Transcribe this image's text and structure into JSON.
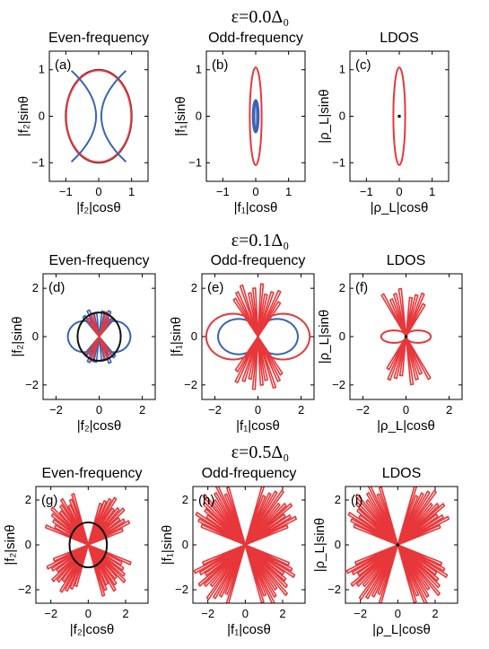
{
  "row_titles": [
    "ε=0.0Δ₀",
    "ε=0.1Δ₀",
    "ε=0.5Δ₀"
  ],
  "column_titles": [
    "Even-frequency",
    "Odd-frequency",
    "LDOS"
  ],
  "colors": {
    "red": "#e8373a",
    "blue": "#3a63b5",
    "black": "#111111"
  },
  "chart_data": [
    {
      "panel": "(a)",
      "type": "line",
      "title": "Even-frequency",
      "xlabel": "|f₂|cosθ",
      "ylabel": "|f₂|sinθ",
      "xlim": [
        -1.5,
        1.5
      ],
      "ylim": [
        -1.4,
        1.4
      ],
      "xticks": [
        -1,
        0,
        1
      ],
      "yticks": [
        -1,
        0,
        1
      ],
      "curves": [
        {
          "kind": "circle",
          "r": 1,
          "color": "black"
        },
        {
          "kind": "circle",
          "r": 0.99,
          "color": "red"
        },
        {
          "kind": "lens",
          "offset": 0.75,
          "color": "blue"
        },
        {
          "kind": "lens",
          "offset": -0.75,
          "color": "blue"
        }
      ]
    },
    {
      "panel": "(b)",
      "type": "line",
      "title": "Odd-frequency",
      "xlabel": "|f₁|cosθ",
      "ylabel": "|f₁|sinθ",
      "xlim": [
        -1.5,
        1.5
      ],
      "ylim": [
        -1.4,
        1.4
      ],
      "xticks": [
        -1,
        0,
        1
      ],
      "yticks": [
        -1,
        0,
        1
      ],
      "curves": [
        {
          "kind": "ellipse",
          "a": 0.18,
          "b": 1.05,
          "color": "red"
        },
        {
          "kind": "ellipse",
          "a": 0.09,
          "b": 0.35,
          "color": "blue"
        },
        {
          "kind": "ellipse",
          "a": 0.04,
          "b": 0.32,
          "color": "blue"
        }
      ]
    },
    {
      "panel": "(c)",
      "type": "line",
      "title": "LDOS",
      "xlabel": "|ρ_L|cosθ",
      "ylabel": "|ρ_L|sinθ",
      "xlim": [
        -1.5,
        1.5
      ],
      "ylim": [
        -1.4,
        1.4
      ],
      "xticks": [
        -1,
        0,
        1
      ],
      "yticks": [
        -1,
        0,
        1
      ],
      "curves": [
        {
          "kind": "ellipse",
          "a": 0.18,
          "b": 1.05,
          "color": "red"
        },
        {
          "kind": "dot",
          "color": "black"
        }
      ]
    },
    {
      "panel": "(d)",
      "type": "line",
      "title": "Even-frequency",
      "xlabel": "|f₂|cosθ",
      "ylabel": "|f₂|sinθ",
      "xlim": [
        -2.6,
        2.6
      ],
      "ylim": [
        -2.6,
        2.6
      ],
      "xticks": [
        -2,
        0,
        2
      ],
      "yticks": [
        -2,
        0,
        2
      ],
      "curves": [
        {
          "kind": "peanut",
          "ax": 1.45,
          "ay": 0.75,
          "color": "blue"
        },
        {
          "kind": "spikes",
          "angles": [
            50,
            65,
            80,
            100,
            115,
            130
          ],
          "len": 1.25,
          "color": "blue"
        },
        {
          "kind": "spikes",
          "angles": [
            55,
            70,
            110,
            125
          ],
          "len": 1.15,
          "color": "red"
        },
        {
          "kind": "circle",
          "r": 1,
          "color": "black"
        }
      ]
    },
    {
      "panel": "(e)",
      "type": "line",
      "title": "Odd-frequency",
      "xlabel": "|f₁|cosθ",
      "ylabel": "|f₁|sinθ",
      "xlim": [
        -2.6,
        2.6
      ],
      "ylim": [
        -2.6,
        2.6
      ],
      "xticks": [
        -2,
        0,
        2
      ],
      "yticks": [
        -2,
        0,
        2
      ],
      "curves": [
        {
          "kind": "peanut",
          "ax": 2.4,
          "ay": 1.1,
          "color": "red"
        },
        {
          "kind": "peanut",
          "ax": 1.85,
          "ay": 0.85,
          "color": "blue"
        },
        {
          "kind": "spikes",
          "angles": [
            55,
            62,
            70,
            78,
            85,
            95,
            102,
            110,
            118,
            125
          ],
          "len": 2.3,
          "color": "red"
        }
      ]
    },
    {
      "panel": "(f)",
      "type": "line",
      "title": "LDOS",
      "xlabel": "|ρ_L|cosθ",
      "ylabel": "|ρ_L|sinθ",
      "xlim": [
        -2.6,
        2.6
      ],
      "ylim": [
        -2.6,
        2.6
      ],
      "xticks": [
        -2,
        0,
        2
      ],
      "yticks": [
        -2,
        0,
        2
      ],
      "curves": [
        {
          "kind": "peanut",
          "ax": 1.15,
          "ay": 0.3,
          "color": "red"
        },
        {
          "kind": "spikes",
          "angles": [
            58,
            66,
            74,
            82,
            98,
            106,
            114,
            122
          ],
          "len": 2.1,
          "color": "red"
        },
        {
          "kind": "dot",
          "color": "black"
        }
      ]
    },
    {
      "panel": "(g)",
      "type": "line",
      "title": "Even-frequency",
      "xlabel": "|f₂|cosθ",
      "ylabel": "|f₂|sinθ",
      "xlim": [
        -2.8,
        3.2
      ],
      "ylim": [
        -2.6,
        2.6
      ],
      "xticks": [
        -2,
        0,
        2
      ],
      "yticks": [
        -2,
        0,
        2
      ],
      "curves": [
        {
          "kind": "spikes",
          "angles": [
            20,
            25,
            30,
            35,
            40,
            45,
            50,
            55,
            60,
            65,
            70,
            110,
            115,
            120,
            125,
            130,
            135,
            140,
            145,
            150,
            155,
            160
          ],
          "len": 2.6,
          "color": "red"
        },
        {
          "kind": "circle",
          "r": 1,
          "color": "black"
        }
      ]
    },
    {
      "panel": "(h)",
      "type": "line",
      "title": "Odd-frequency",
      "xlabel": "|f₁|cosθ",
      "ylabel": "|f₁|sinθ",
      "xlim": [
        -2.8,
        3.2
      ],
      "ylim": [
        -2.6,
        2.6
      ],
      "xticks": [
        -2,
        0,
        2
      ],
      "yticks": [
        -2,
        0,
        2
      ],
      "curves": [
        {
          "kind": "spikes",
          "angles": [
            20,
            24,
            28,
            32,
            36,
            40,
            45,
            50,
            55,
            60,
            65,
            70,
            110,
            115,
            120,
            125,
            130,
            135,
            140,
            144,
            148,
            152,
            156,
            160
          ],
          "len": 3.2,
          "color": "red"
        }
      ]
    },
    {
      "panel": "(i)",
      "type": "line",
      "title": "LDOS",
      "xlabel": "|ρ_L|cosθ",
      "ylabel": "|ρ_L|sinθ",
      "xlim": [
        -2.8,
        3.2
      ],
      "ylim": [
        -2.6,
        2.6
      ],
      "xticks": [
        -2,
        0,
        2
      ],
      "yticks": [
        -2,
        0,
        2
      ],
      "curves": [
        {
          "kind": "spikes",
          "angles": [
            20,
            24,
            28,
            32,
            36,
            40,
            45,
            50,
            55,
            60,
            65,
            70,
            110,
            115,
            120,
            125,
            130,
            135,
            140,
            144,
            148,
            152,
            156,
            160
          ],
          "len": 3.2,
          "color": "red"
        },
        {
          "kind": "dot",
          "color": "black"
        }
      ]
    }
  ]
}
